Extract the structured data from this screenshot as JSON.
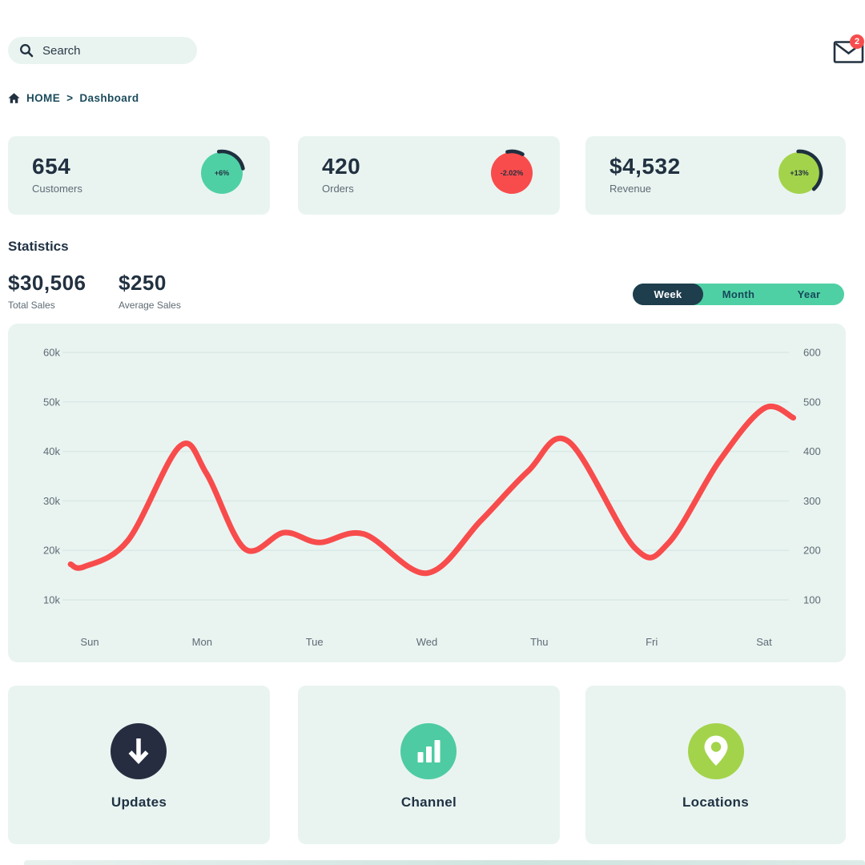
{
  "colors": {
    "ink": "#223140",
    "teal_ink": "#1b4b5c",
    "muted": "#5e6a74",
    "mint_bg": "#e9f4f1",
    "accent_green": "#4fd0a4",
    "accent_red": "#f84c4c",
    "accent_lime": "#a3d34b",
    "dark_navy": "#272d41",
    "grid": "#d9e9e5"
  },
  "header": {
    "search_placeholder": "Search",
    "mail_badge_count": "2"
  },
  "breadcrumb": {
    "home_label": "HOME",
    "separator": ">",
    "current": "Dashboard"
  },
  "stat_cards": [
    {
      "value": "654",
      "label": "Customers",
      "delta": "+6%",
      "circle_color": "#4fd0a4"
    },
    {
      "value": "420",
      "label": "Orders",
      "delta": "-2.02%",
      "circle_color": "#f84c4c"
    },
    {
      "value": "$4,532",
      "label": "Revenue",
      "delta": "+13%",
      "circle_color": "#a3d34b"
    }
  ],
  "statistics": {
    "title": "Statistics",
    "totals": [
      {
        "value": "$30,506",
        "label": "Total Sales"
      },
      {
        "value": "$250",
        "label": "Average Sales"
      }
    ],
    "range_tabs": [
      {
        "label": "Week",
        "active": true
      },
      {
        "label": "Month",
        "active": false
      },
      {
        "label": "Year",
        "active": false
      }
    ]
  },
  "chart_data": {
    "type": "line",
    "categories": [
      "Sun",
      "Mon",
      "Tue",
      "Wed",
      "Thu",
      "Fri",
      "Sat"
    ],
    "axis_rows": [
      {
        "left": "60k",
        "right": "600",
        "value": 60
      },
      {
        "left": "50k",
        "right": "500",
        "value": 50
      },
      {
        "left": "40k",
        "right": "400",
        "value": 40
      },
      {
        "left": "30k",
        "right": "300",
        "value": 30
      },
      {
        "left": "20k",
        "right": "200",
        "value": 20
      },
      {
        "left": "10k",
        "right": "100",
        "value": 10
      }
    ],
    "left_axis_range_k": [
      10,
      60
    ],
    "right_axis_range": [
      100,
      600
    ],
    "grid": true,
    "legend": false,
    "line_color": "#f84c4c",
    "x_unit": "day index, Sun=0",
    "y_unit": "thousands (left axis) / hundreds (right axis)",
    "points_day_value_k": [
      [
        -0.17,
        17.2
      ],
      [
        -0.05,
        16.7
      ],
      [
        0.34,
        22
      ],
      [
        0.8,
        41
      ],
      [
        1.04,
        35.5
      ],
      [
        1.38,
        20.3
      ],
      [
        1.73,
        23.6
      ],
      [
        2.04,
        21.6
      ],
      [
        2.44,
        23.3
      ],
      [
        3.0,
        15.4
      ],
      [
        3.48,
        26
      ],
      [
        3.9,
        36
      ],
      [
        4.26,
        42
      ],
      [
        4.85,
        20.5
      ],
      [
        5.15,
        21.5
      ],
      [
        5.6,
        38
      ],
      [
        6.0,
        48.7
      ],
      [
        6.26,
        46.8
      ]
    ],
    "approx_day_values_k": {
      "Sun": 17,
      "Mon": 37,
      "Tue": 21.6,
      "Wed": 15.4,
      "Thu": 40,
      "Fri": 21.5,
      "Sat": 48.5
    }
  },
  "bottom_cards": [
    {
      "label": "Updates",
      "icon": "arrow-down-icon",
      "circle_color": "#272d41"
    },
    {
      "label": "Channel",
      "icon": "bar-chart-icon",
      "circle_color": "#4ecba2"
    },
    {
      "label": "Locations",
      "icon": "location-pin-icon",
      "circle_color": "#a3d34b"
    }
  ]
}
